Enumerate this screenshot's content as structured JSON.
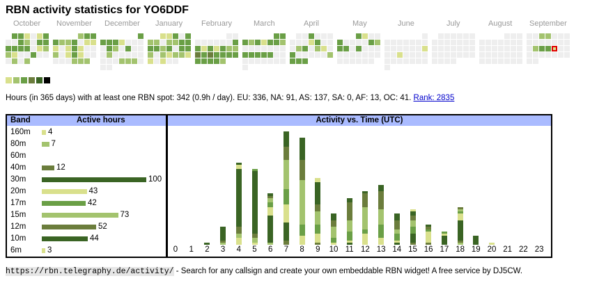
{
  "title": "RBN activity statistics for YO6DDF",
  "colors": {
    "empty": "#eeeeee",
    "level1": "#d9e08c",
    "level2": "#a3c36e",
    "level3": "#6a9f46",
    "level4": "#6b7d3c",
    "level5": "#3a6424",
    "level6": "#000000",
    "header": "#aabbff",
    "selected_border": "#e00000",
    "link": "#0000cc"
  },
  "calendar": {
    "months": [
      {
        "label": "October",
        "rows": [
          [
            -1,
            3,
            3,
            1,
            0,
            1,
            3
          ],
          [
            0,
            0,
            3,
            2,
            0,
            3,
            3
          ],
          [
            3,
            3,
            3,
            3,
            0,
            1,
            2
          ],
          [
            2,
            1,
            0,
            0,
            3,
            0,
            0
          ],
          [
            0,
            2,
            0,
            2
          ]
        ]
      },
      {
        "label": "November",
        "rows": [
          [
            -1,
            -1,
            -1,
            -1,
            2,
            3,
            3
          ],
          [
            3,
            2,
            2,
            3,
            0,
            1,
            1
          ],
          [
            1,
            0,
            1,
            3,
            1,
            0,
            0
          ],
          [
            2,
            0,
            1,
            3,
            1,
            0,
            0
          ],
          [
            0,
            0,
            0,
            2,
            2,
            2
          ]
        ]
      },
      {
        "label": "December",
        "rows": [
          [
            -1,
            -1,
            -1,
            -1,
            -1,
            -1,
            3
          ],
          [
            3,
            3,
            3,
            1,
            0,
            0,
            0
          ],
          [
            0,
            3,
            2,
            0,
            3,
            0,
            0
          ],
          [
            0,
            2,
            0,
            0,
            0,
            0,
            0
          ],
          [
            0,
            0,
            0,
            2,
            2,
            2,
            0
          ],
          [
            0,
            0
          ]
        ]
      },
      {
        "label": "January",
        "rows": [
          [
            -1,
            -1,
            1,
            1,
            3,
            0,
            3
          ],
          [
            2,
            2,
            0,
            2,
            2,
            3,
            3
          ],
          [
            3,
            3,
            2,
            3,
            0,
            3,
            3
          ],
          [
            2,
            0,
            2,
            1,
            2,
            2,
            1
          ],
          [
            1,
            0,
            1,
            0,
            0
          ]
        ]
      },
      {
        "label": "February",
        "rows": [
          [
            -1,
            -1,
            -1,
            -1,
            -1,
            0,
            0
          ],
          [
            0,
            0,
            0,
            0,
            0,
            0,
            3
          ],
          [
            3,
            1,
            3,
            1,
            3,
            2,
            2
          ],
          [
            4,
            3,
            4,
            3,
            3,
            3,
            3
          ],
          [
            3,
            3,
            3,
            3,
            2
          ]
        ]
      },
      {
        "label": "March",
        "rows": [
          [
            -1,
            -1,
            -1,
            -1,
            -1,
            3,
            3
          ],
          [
            3,
            2,
            3,
            1,
            3,
            3,
            2
          ],
          [
            0,
            0,
            0,
            0,
            0,
            0,
            0
          ],
          [
            3,
            3,
            3,
            3,
            3,
            0,
            0
          ],
          [
            0,
            0,
            0,
            0,
            0,
            0,
            0
          ],
          [
            0
          ]
        ]
      },
      {
        "label": "April",
        "rows": [
          [
            -1,
            0,
            0,
            3,
            0,
            0,
            0
          ],
          [
            0,
            0,
            0,
            1,
            3,
            0,
            0
          ],
          [
            0,
            2,
            3,
            0,
            2,
            1,
            0
          ],
          [
            3,
            0,
            0,
            0,
            0,
            0,
            2
          ],
          [
            3,
            3,
            3
          ]
        ]
      },
      {
        "label": "May",
        "rows": [
          [
            -1,
            -1,
            -1,
            3,
            1,
            0,
            0
          ],
          [
            3,
            0,
            0,
            0,
            0,
            3,
            2
          ],
          [
            3,
            3,
            0,
            3,
            0,
            0,
            0
          ],
          [
            0,
            0,
            0,
            0,
            0,
            0,
            0
          ],
          [
            0,
            0,
            0,
            0,
            0,
            0
          ]
        ]
      },
      {
        "label": "June",
        "rows": [
          [
            -1,
            -1,
            -1,
            -1,
            -1,
            -1,
            0
          ],
          [
            0,
            0,
            0,
            0,
            0,
            0,
            0
          ],
          [
            0,
            0,
            0,
            0,
            0,
            0,
            1
          ],
          [
            0,
            0,
            1,
            0,
            0,
            0,
            0
          ],
          [
            0,
            0,
            0,
            0,
            0,
            0,
            0
          ],
          [
            0
          ]
        ]
      },
      {
        "label": "July",
        "rows": [
          [
            -1,
            0,
            0,
            0,
            0,
            0,
            0
          ],
          [
            0,
            0,
            0,
            0,
            0,
            0,
            0
          ],
          [
            0,
            0,
            0,
            0,
            0,
            0,
            0
          ],
          [
            0,
            0,
            0,
            0,
            0,
            0,
            0
          ],
          [
            0,
            0,
            0,
            0
          ]
        ]
      },
      {
        "label": "August",
        "rows": [
          [
            -1,
            -1,
            -1,
            -1,
            0,
            0,
            0
          ],
          [
            0,
            0,
            0,
            0,
            0,
            0,
            0
          ],
          [
            0,
            0,
            0,
            0,
            0,
            0,
            0
          ],
          [
            0,
            0,
            0,
            0,
            0,
            0,
            0
          ],
          [
            0,
            0,
            0,
            0,
            0,
            0,
            0
          ]
        ]
      },
      {
        "label": "September",
        "rows": [
          [
            0,
            0,
            2,
            2,
            0,
            0,
            0
          ],
          [
            0,
            0,
            0,
            0,
            0,
            0,
            0
          ],
          [
            0,
            2,
            3,
            3,
            1,
            0,
            0
          ],
          [
            0,
            0,
            0,
            0,
            0,
            0,
            0
          ],
          [
            0,
            0
          ]
        ],
        "selected": [
          2,
          4
        ]
      }
    ],
    "legend_levels": [
      1,
      2,
      3,
      4,
      5,
      6
    ]
  },
  "summary": {
    "text": "Hours (in 365 days) with at least one RBN spot: 342 (0.9h / day). EU: 336, NA: 91, AS: 137, SA: 0, AF: 13, OC: 41.",
    "rank_link": "Rank: 2835"
  },
  "band_table": {
    "header_band": "Band",
    "header_hours": "Active hours",
    "rows": [
      {
        "band": "160m",
        "hours": 4,
        "level": 1
      },
      {
        "band": "80m",
        "hours": 7,
        "level": 2
      },
      {
        "band": "60m",
        "hours": null,
        "level": 0
      },
      {
        "band": "40m",
        "hours": 12,
        "level": 4
      },
      {
        "band": "30m",
        "hours": 100,
        "level": 5
      },
      {
        "band": "20m",
        "hours": 43,
        "level": 1
      },
      {
        "band": "17m",
        "hours": 42,
        "level": 3
      },
      {
        "band": "15m",
        "hours": 73,
        "level": 2
      },
      {
        "band": "12m",
        "hours": 52,
        "level": 4
      },
      {
        "band": "10m",
        "hours": 44,
        "level": 5
      },
      {
        "band": "6m",
        "hours": 3,
        "level": 1
      }
    ]
  },
  "chart_data": {
    "type": "bar",
    "title": "Activity vs. Time (UTC)",
    "xlabel": "",
    "ylabel": "",
    "categories": [
      "0",
      "1",
      "2",
      "3",
      "4",
      "5",
      "6",
      "7",
      "8",
      "9",
      "10",
      "11",
      "12",
      "13",
      "14",
      "15",
      "16",
      "17",
      "18",
      "19",
      "20",
      "21",
      "22",
      "23"
    ],
    "stacked_segments_bottom_to_top": [
      [],
      [],
      [
        {
          "level": 5,
          "v": 1
        }
      ],
      [
        {
          "level": 2,
          "v": 1
        },
        {
          "level": 4,
          "v": 1
        },
        {
          "level": 5,
          "v": 6
        }
      ],
      [
        {
          "level": 1,
          "v": 3
        },
        {
          "level": 2,
          "v": 2
        },
        {
          "level": 4,
          "v": 3
        },
        {
          "level": 5,
          "v": 26
        },
        {
          "level": 1,
          "v": 2
        },
        {
          "level": 5,
          "v": 1
        }
      ],
      [
        {
          "level": 1,
          "v": 1
        },
        {
          "level": 2,
          "v": 2
        },
        {
          "level": 4,
          "v": 2
        },
        {
          "level": 5,
          "v": 28
        },
        {
          "level": 3,
          "v": 1
        }
      ],
      [
        {
          "level": 2,
          "v": 1
        },
        {
          "level": 5,
          "v": 12
        },
        {
          "level": 1,
          "v": 4
        },
        {
          "level": 3,
          "v": 2
        },
        {
          "level": 2,
          "v": 2
        },
        {
          "level": 4,
          "v": 1
        },
        {
          "level": 5,
          "v": 1
        }
      ],
      [
        {
          "level": 4,
          "v": 2
        },
        {
          "level": 5,
          "v": 8
        },
        {
          "level": 1,
          "v": 8
        },
        {
          "level": 3,
          "v": 7
        },
        {
          "level": 2,
          "v": 13
        },
        {
          "level": 4,
          "v": 6
        },
        {
          "level": 5,
          "v": 7
        }
      ],
      [
        {
          "level": 1,
          "v": 4
        },
        {
          "level": 3,
          "v": 5
        },
        {
          "level": 2,
          "v": 20
        },
        {
          "level": 4,
          "v": 9
        },
        {
          "level": 5,
          "v": 10
        }
      ],
      [
        {
          "level": 4,
          "v": 1
        },
        {
          "level": 1,
          "v": 4
        },
        {
          "level": 3,
          "v": 4
        },
        {
          "level": 2,
          "v": 6
        },
        {
          "level": 4,
          "v": 3
        },
        {
          "level": 5,
          "v": 10
        },
        {
          "level": 1,
          "v": 2
        }
      ],
      [
        {
          "level": 1,
          "v": 1
        },
        {
          "level": 3,
          "v": 2
        },
        {
          "level": 2,
          "v": 5
        },
        {
          "level": 4,
          "v": 3
        },
        {
          "level": 5,
          "v": 3
        }
      ],
      [
        {
          "level": 5,
          "v": 1
        },
        {
          "level": 1,
          "v": 1
        },
        {
          "level": 3,
          "v": 4
        },
        {
          "level": 2,
          "v": 5
        },
        {
          "level": 4,
          "v": 8
        },
        {
          "level": 5,
          "v": 2
        }
      ],
      [
        {
          "level": 1,
          "v": 5
        },
        {
          "level": 3,
          "v": 2
        },
        {
          "level": 2,
          "v": 10
        },
        {
          "level": 4,
          "v": 6
        },
        {
          "level": 5,
          "v": 1
        }
      ],
      [
        {
          "level": 1,
          "v": 3
        },
        {
          "level": 3,
          "v": 6
        },
        {
          "level": 2,
          "v": 7
        },
        {
          "level": 4,
          "v": 8
        },
        {
          "level": 5,
          "v": 3
        }
      ],
      [
        {
          "level": 5,
          "v": 1
        },
        {
          "level": 1,
          "v": 1
        },
        {
          "level": 3,
          "v": 3
        },
        {
          "level": 2,
          "v": 2
        },
        {
          "level": 4,
          "v": 4
        },
        {
          "level": 5,
          "v": 3
        }
      ],
      [
        {
          "level": 4,
          "v": 1
        },
        {
          "level": 5,
          "v": 4
        },
        {
          "level": 3,
          "v": 3
        },
        {
          "level": 2,
          "v": 3
        },
        {
          "level": 4,
          "v": 2
        },
        {
          "level": 5,
          "v": 2
        },
        {
          "level": 1,
          "v": 1
        }
      ],
      [
        {
          "level": 4,
          "v": 1
        },
        {
          "level": 1,
          "v": 5
        },
        {
          "level": 3,
          "v": 1
        },
        {
          "level": 4,
          "v": 1
        },
        {
          "level": 5,
          "v": 1
        }
      ],
      [
        {
          "level": 5,
          "v": 4
        },
        {
          "level": 1,
          "v": 1
        },
        {
          "level": 3,
          "v": 1
        }
      ],
      [
        {
          "level": 2,
          "v": 1
        },
        {
          "level": 4,
          "v": 1
        },
        {
          "level": 5,
          "v": 9
        },
        {
          "level": 1,
          "v": 3
        },
        {
          "level": 3,
          "v": 1
        },
        {
          "level": 2,
          "v": 1
        },
        {
          "level": 4,
          "v": 1
        }
      ],
      [
        {
          "level": 5,
          "v": 4
        }
      ],
      [
        {
          "level": 1,
          "v": 1
        }
      ],
      [],
      [],
      []
    ]
  },
  "footer": {
    "url": "https://rbn.telegraphy.de/activity/",
    "text": " - Search for any callsign and create your own embeddable RBN widget! A free service by DJ5CW."
  }
}
